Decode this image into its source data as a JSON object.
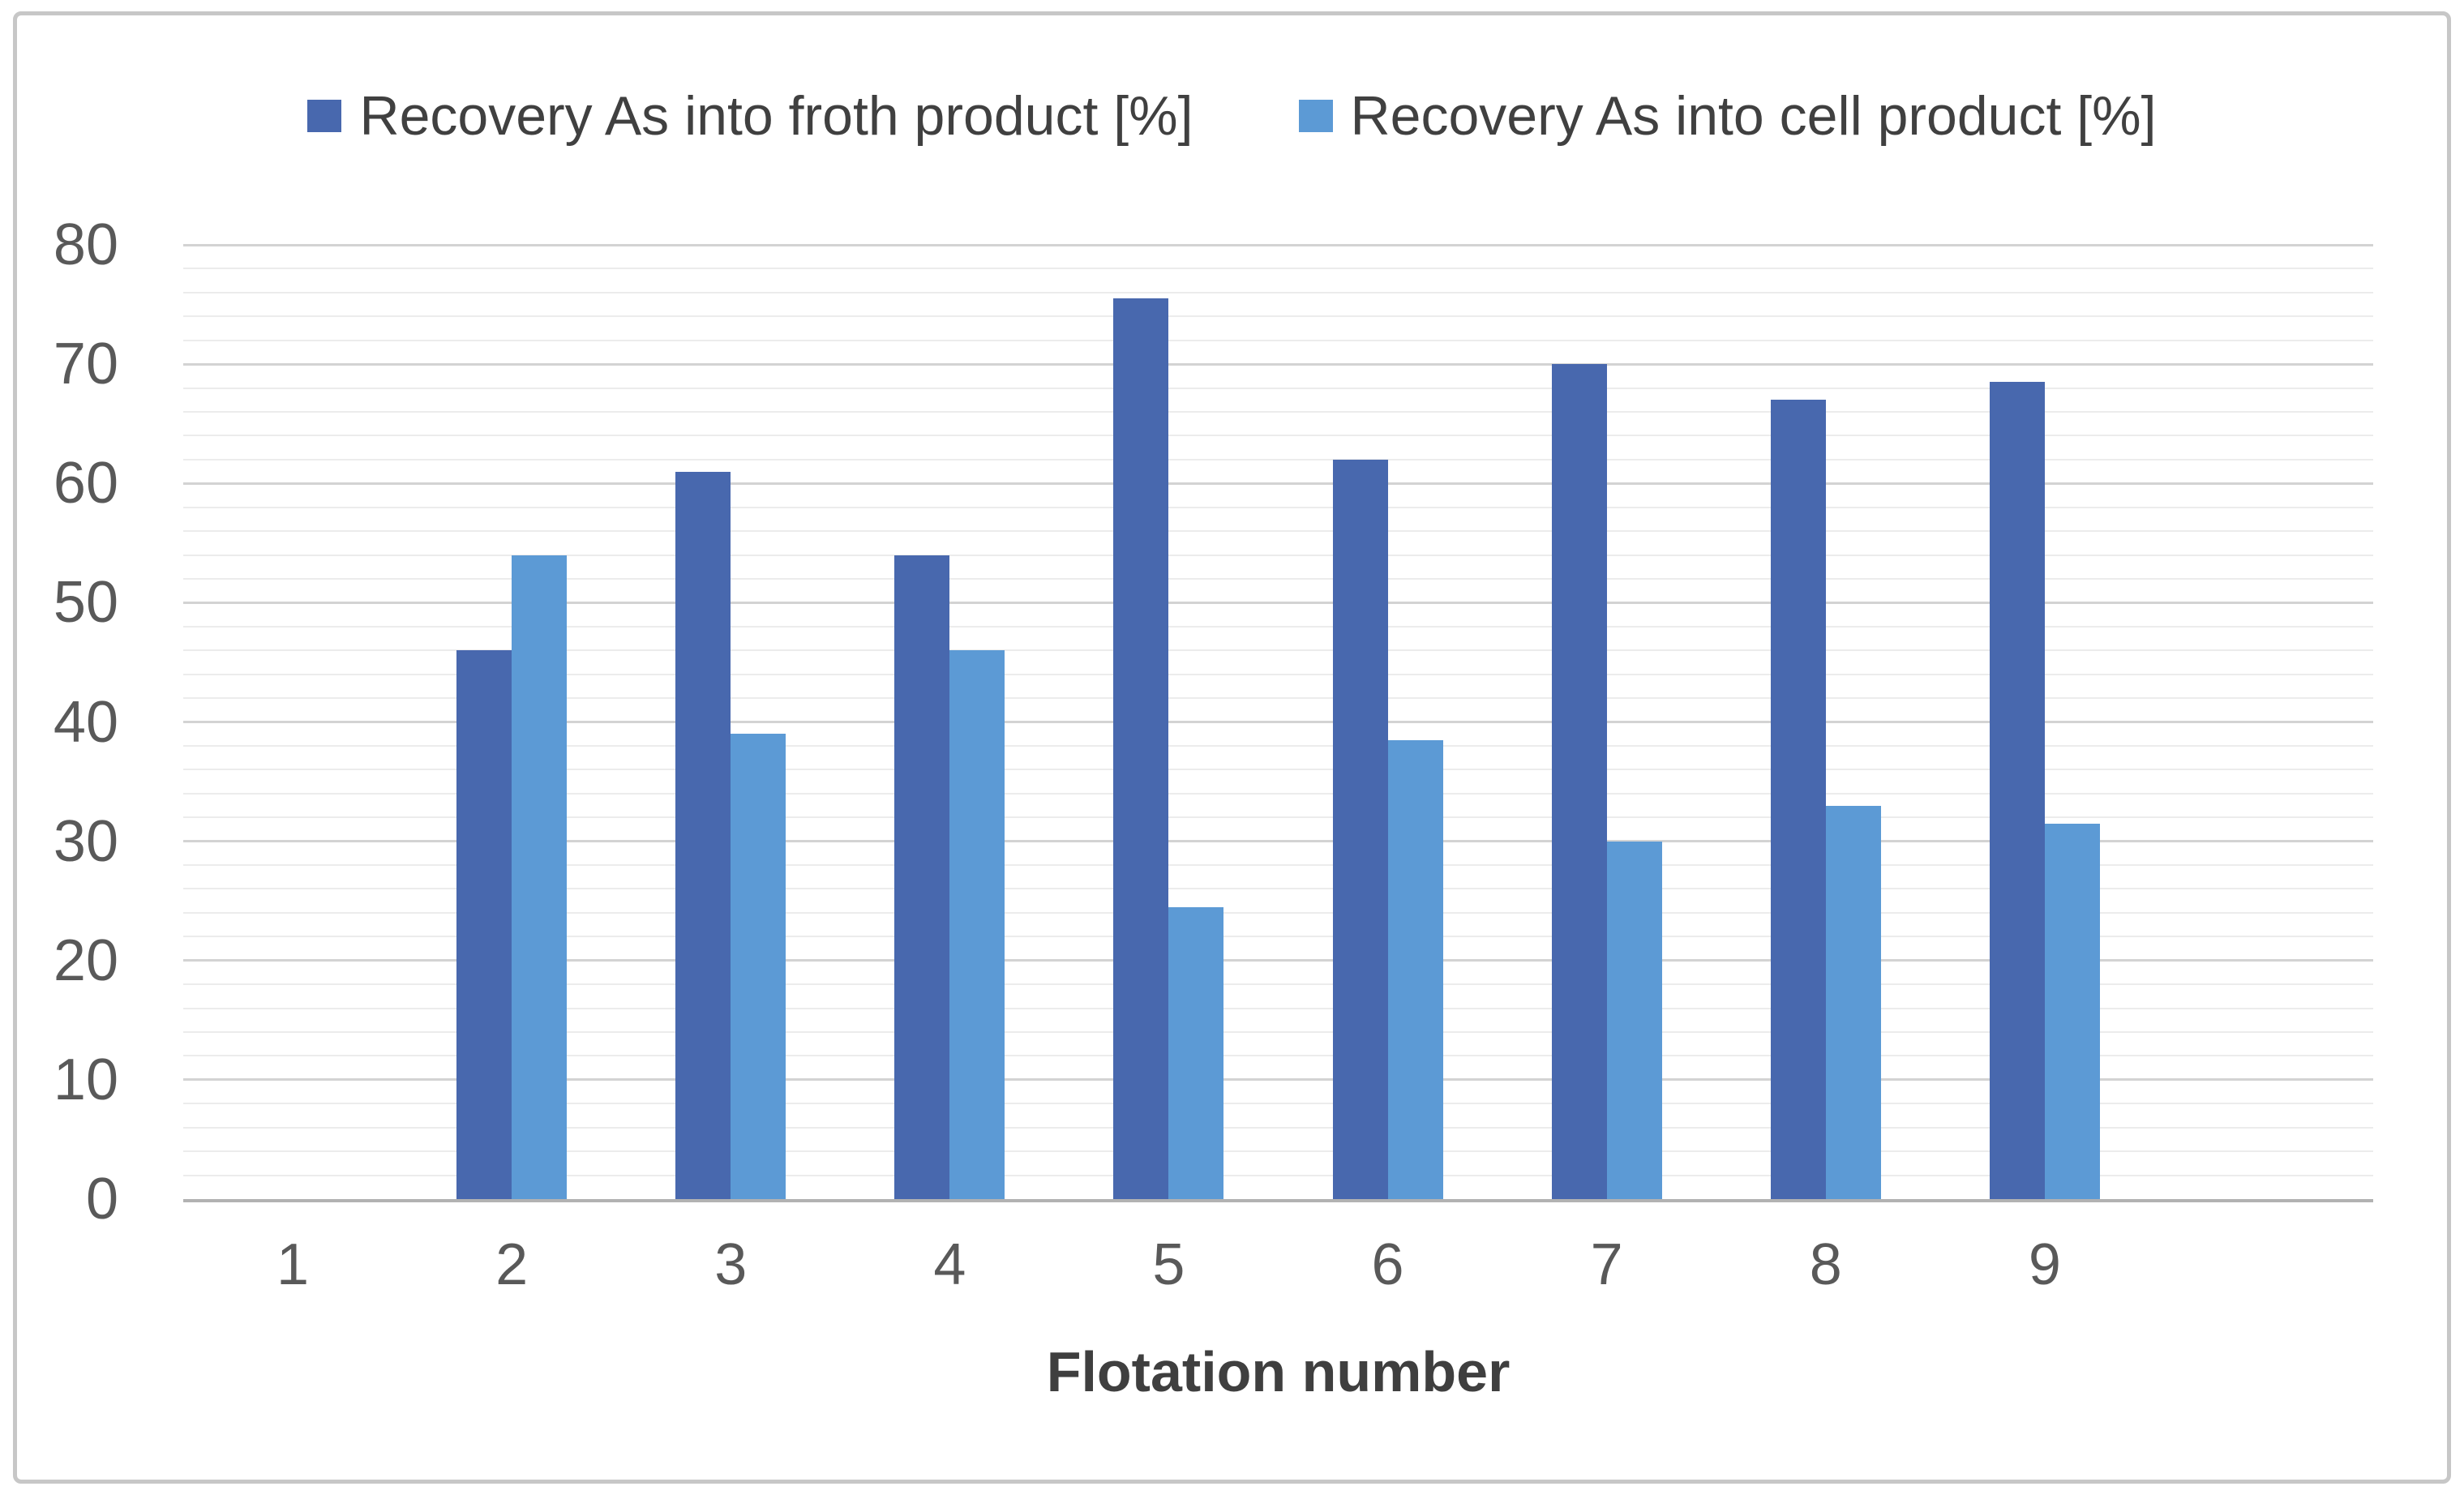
{
  "chart_data": {
    "type": "bar",
    "title": "",
    "xlabel": "Flotation number",
    "ylabel": "",
    "categories": [
      "1",
      "2",
      "3",
      "4",
      "5",
      "6",
      "7",
      "8",
      "9"
    ],
    "series": [
      {
        "name": "Recovery As into froth product [%]",
        "color": "#4868AE",
        "values": [
          0,
          46,
          61,
          54,
          75.5,
          62,
          70,
          67,
          68.5
        ]
      },
      {
        "name": "Recovery As into cell product [%]",
        "color": "#5C9AD5",
        "values": [
          0,
          54,
          39,
          46,
          24.5,
          38.5,
          30,
          33,
          31.5
        ]
      }
    ],
    "ylim": [
      0,
      80
    ],
    "y_ticks": [
      0,
      10,
      20,
      30,
      40,
      50,
      60,
      70,
      80
    ],
    "y_minor_step": 2,
    "grid": "major+minor horizontal",
    "legend_position": "top-center",
    "x_axis_extra_empty_slots_right": 1
  },
  "legend": {
    "froth_label": "Recovery As into froth product [%]",
    "cell_label": "Recovery As into cell product [%]"
  },
  "axis": {
    "x_title": "Flotation number"
  },
  "colors": {
    "froth": "#4868AE",
    "cell": "#5C9AD5",
    "major_grid": "#d3d3d3",
    "minor_grid": "#ececec",
    "axis_line": "#b2b2b2",
    "tick_text": "#595959",
    "title_text": "#3f3f3f",
    "frame_border": "#c7c7c7"
  }
}
